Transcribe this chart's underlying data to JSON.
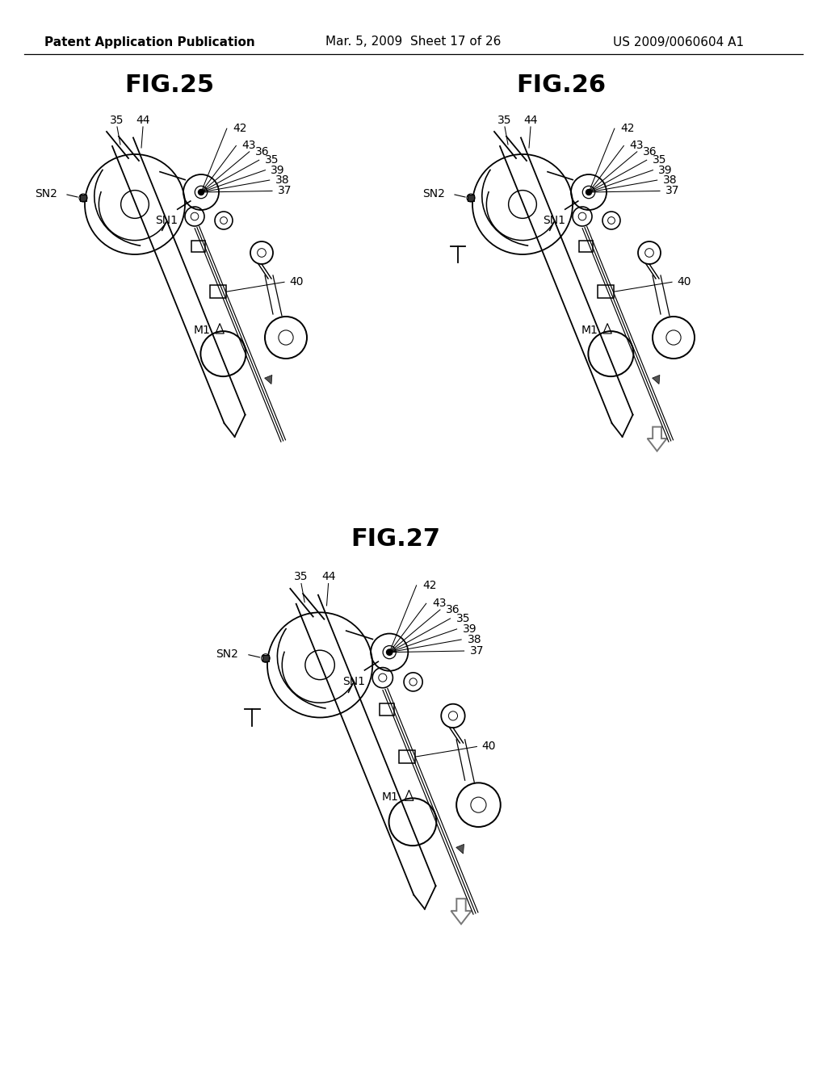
{
  "background_color": "#ffffff",
  "header_left": "Patent Application Publication",
  "header_mid": "Mar. 5, 2009  Sheet 17 of 26",
  "header_right": "US 2009/0060604 A1",
  "fig25_title": "FIG.25",
  "fig26_title": "FIG.26",
  "fig27_title": "FIG.27",
  "header_fontsize": 11,
  "title_fontsize": 22,
  "label_fontsize": 10
}
